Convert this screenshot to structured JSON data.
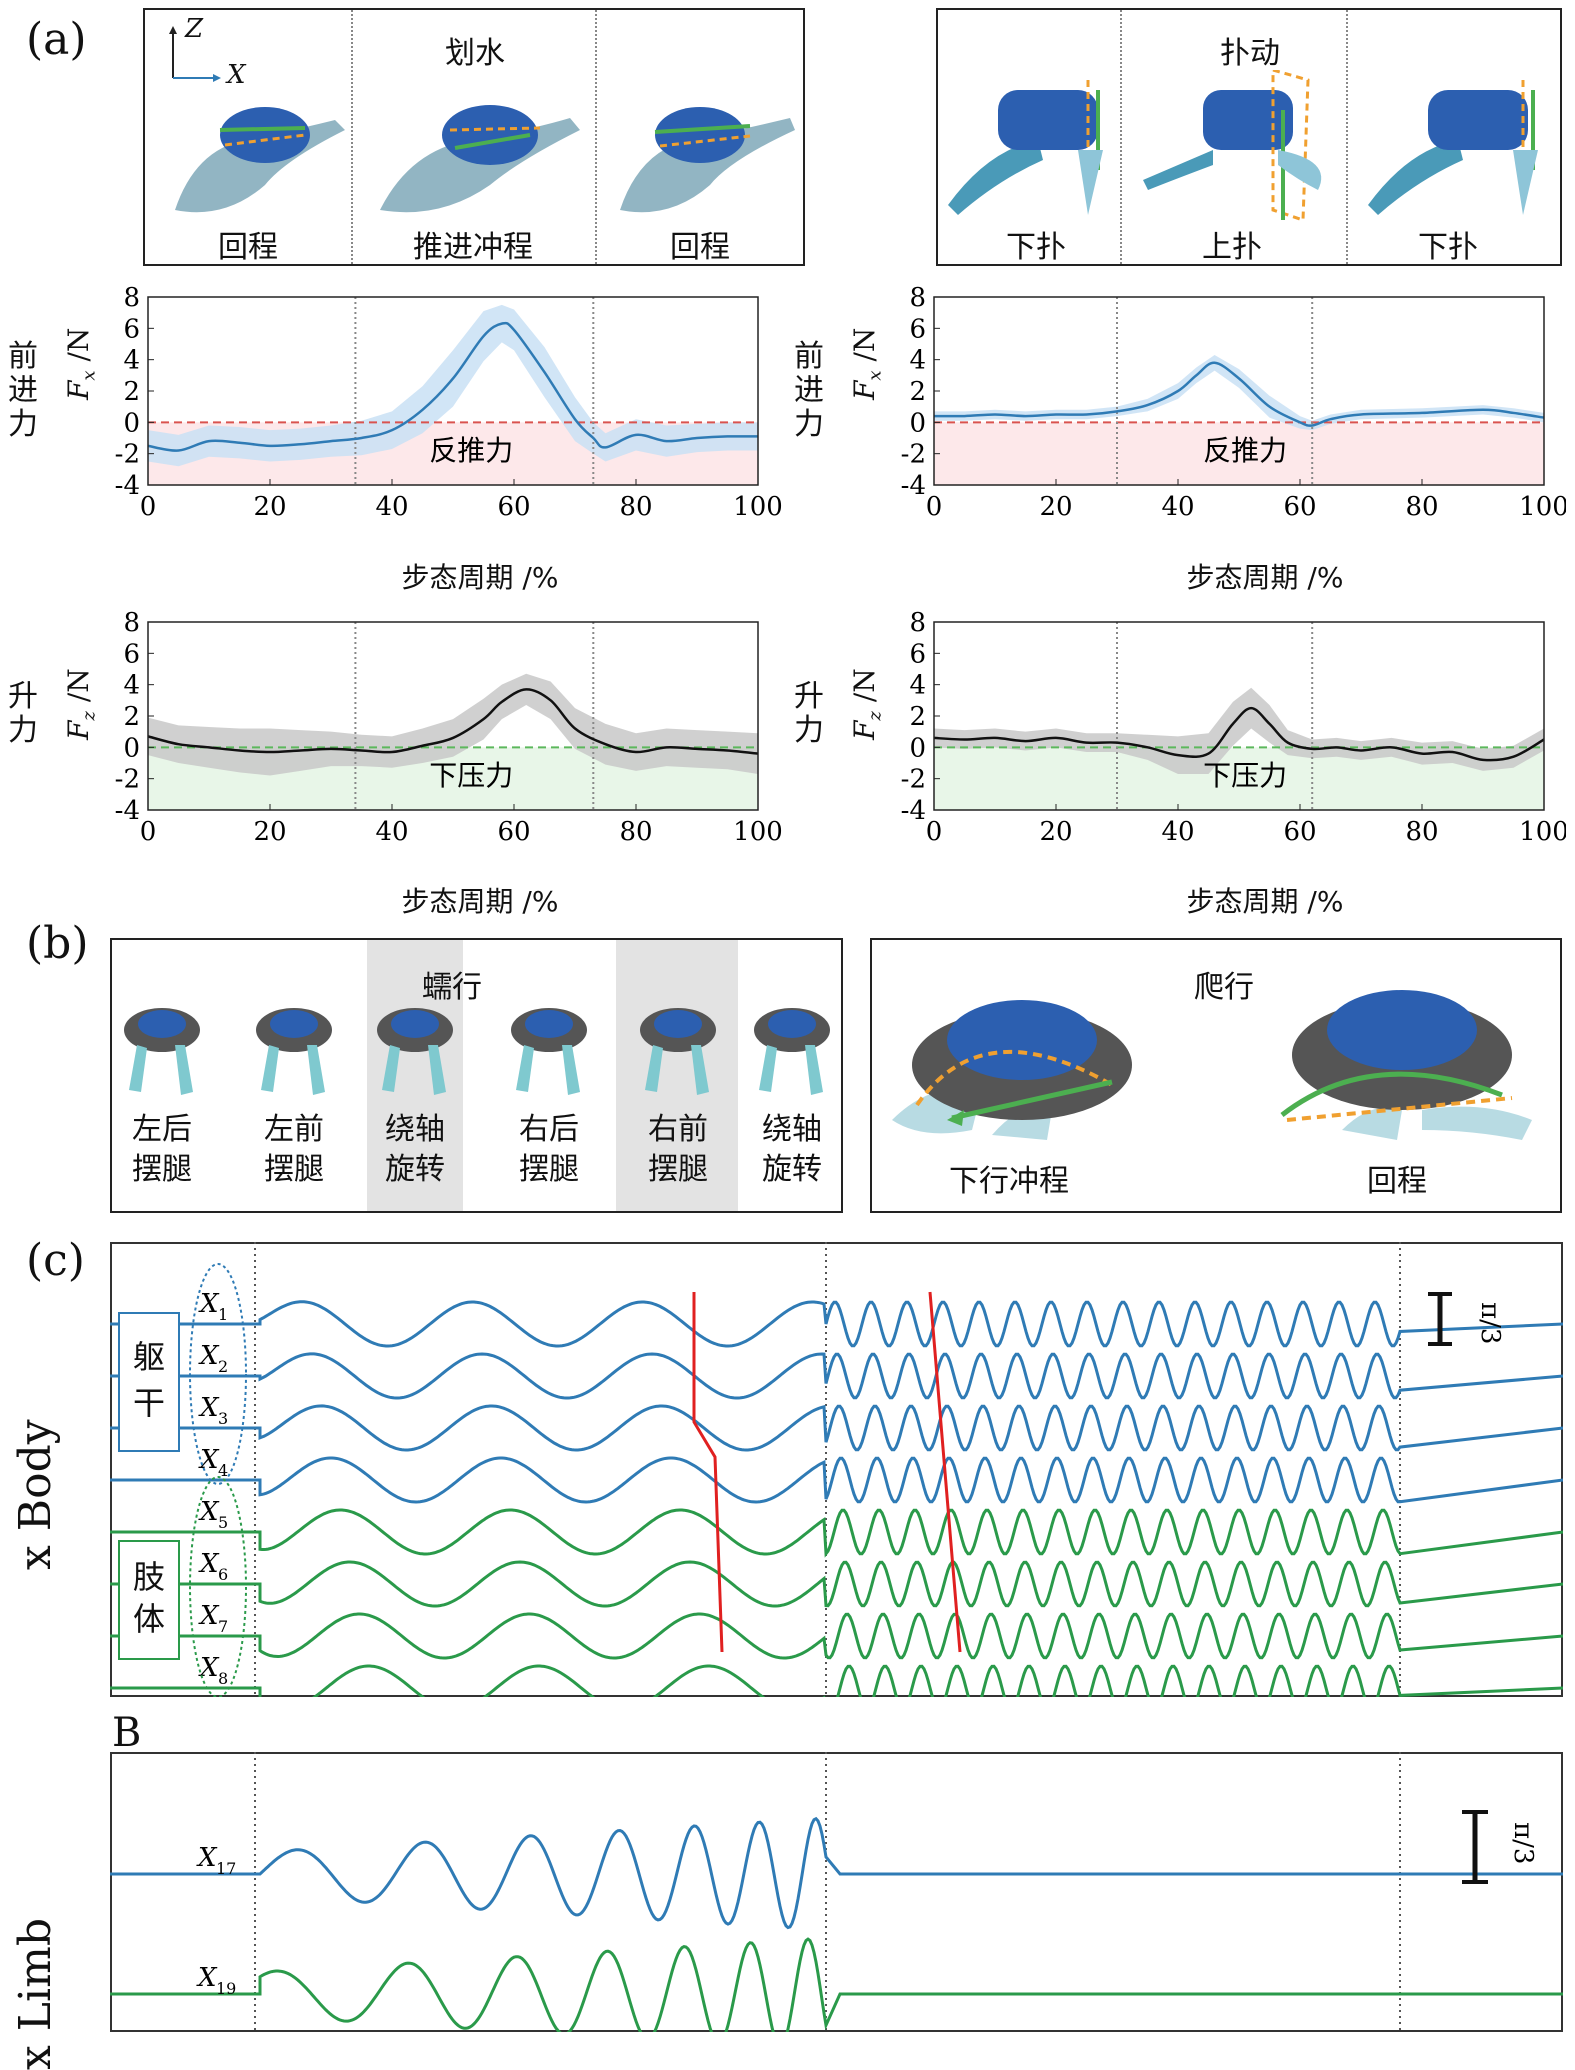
{
  "panels": {
    "a": "(a)",
    "b": "(b)",
    "c": "(c)"
  },
  "paddling": {
    "title": "划水",
    "axes_z": "Z",
    "axes_x": "X",
    "phases": [
      "回程",
      "推进冲程",
      "回程"
    ]
  },
  "flapping": {
    "title": "扑动",
    "phases": [
      "下扑",
      "上扑",
      "下扑"
    ]
  },
  "fx_label": {
    "cn": [
      "前",
      "进",
      "力"
    ],
    "var": "F",
    "sub": "x",
    "unit": " /N"
  },
  "fz_label": {
    "cn": [
      "升",
      "力"
    ],
    "var": "F",
    "sub": "z",
    "unit": " /N"
  },
  "xlabel": "步态周期 /%",
  "region_labels": {
    "reverse_thrust": "反推力",
    "downforce": "下压力"
  },
  "colors": {
    "series_blue": "#2f7bb5",
    "series_black": "#111111",
    "zero_red": "#d9534f",
    "zero_green": "#5cb85c",
    "band_blue": "#c9e0f4",
    "band_gray": "#c8c8c8",
    "fill_pink": "#fde8ea",
    "fill_green": "#e8f6e8"
  },
  "chart_data": [
    {
      "type": "line",
      "id": "paddle_fx",
      "ylim": [
        -4,
        8
      ],
      "xlim": [
        0,
        100
      ],
      "xticks": [
        0,
        20,
        40,
        60,
        80,
        100
      ],
      "yticks": [
        -4,
        -2,
        0,
        2,
        4,
        6,
        8
      ],
      "phase_lines": [
        34,
        73
      ],
      "x": [
        0,
        5,
        10,
        15,
        20,
        25,
        30,
        35,
        40,
        45,
        50,
        55,
        58,
        60,
        65,
        70,
        73,
        75,
        80,
        85,
        90,
        95,
        100
      ],
      "y": [
        -1.5,
        -1.8,
        -1.2,
        -1.3,
        -1.5,
        -1.4,
        -1.2,
        -1.0,
        -0.5,
        0.8,
        2.8,
        5.5,
        6.3,
        5.9,
        3.2,
        0.2,
        -1.0,
        -1.6,
        -0.8,
        -1.2,
        -1.0,
        -0.9,
        -0.9
      ],
      "band": [
        1.0,
        1.0,
        1.0,
        1.0,
        1.0,
        1.0,
        1.0,
        1.1,
        1.2,
        1.5,
        1.8,
        1.6,
        1.2,
        1.3,
        1.6,
        1.4,
        1.0,
        0.9,
        1.0,
        1.0,
        0.9,
        0.9,
        0.9
      ]
    },
    {
      "type": "line",
      "id": "flap_fx",
      "ylim": [
        -4,
        8
      ],
      "xlim": [
        0,
        100
      ],
      "xticks": [
        0,
        20,
        40,
        60,
        80,
        100
      ],
      "yticks": [
        -4,
        -2,
        0,
        2,
        4,
        6,
        8
      ],
      "phase_lines": [
        30,
        62
      ],
      "x": [
        0,
        5,
        10,
        15,
        20,
        25,
        30,
        35,
        40,
        43,
        46,
        50,
        55,
        60,
        62,
        65,
        70,
        80,
        90,
        95,
        100
      ],
      "y": [
        0.4,
        0.4,
        0.5,
        0.4,
        0.5,
        0.5,
        0.7,
        1.1,
        2.0,
        3.0,
        3.8,
        2.8,
        1.0,
        0.0,
        -0.2,
        0.2,
        0.5,
        0.6,
        0.8,
        0.6,
        0.3
      ],
      "band": [
        0.3,
        0.3,
        0.3,
        0.3,
        0.3,
        0.3,
        0.3,
        0.4,
        0.5,
        0.5,
        0.5,
        0.6,
        0.7,
        0.4,
        0.3,
        0.3,
        0.3,
        0.3,
        0.3,
        0.3,
        0.3
      ]
    },
    {
      "type": "line",
      "id": "paddle_fz",
      "ylim": [
        -4,
        8
      ],
      "xlim": [
        0,
        100
      ],
      "xticks": [
        0,
        20,
        40,
        60,
        80,
        100
      ],
      "yticks": [
        -4,
        -2,
        0,
        2,
        4,
        6,
        8
      ],
      "phase_lines": [
        34,
        73
      ],
      "x": [
        0,
        5,
        10,
        15,
        20,
        25,
        30,
        35,
        40,
        45,
        50,
        55,
        58,
        62,
        66,
        70,
        75,
        80,
        85,
        90,
        95,
        100
      ],
      "y": [
        0.7,
        0.2,
        0.0,
        -0.2,
        -0.3,
        -0.2,
        -0.1,
        -0.2,
        -0.3,
        0.1,
        0.6,
        1.8,
        2.9,
        3.7,
        3.0,
        1.2,
        0.2,
        -0.3,
        0.0,
        -0.1,
        -0.2,
        -0.4
      ],
      "band": [
        1.2,
        1.2,
        1.3,
        1.4,
        1.5,
        1.3,
        1.1,
        1.0,
        1.0,
        1.1,
        1.2,
        1.3,
        1.1,
        1.0,
        1.2,
        1.3,
        1.3,
        1.2,
        1.2,
        1.2,
        1.2,
        1.3
      ]
    },
    {
      "type": "line",
      "id": "flap_fz",
      "ylim": [
        -4,
        8
      ],
      "xlim": [
        0,
        100
      ],
      "xticks": [
        0,
        20,
        40,
        60,
        80,
        100
      ],
      "yticks": [
        -4,
        -2,
        0,
        2,
        4,
        6,
        8
      ],
      "phase_lines": [
        30,
        62
      ],
      "x": [
        0,
        5,
        10,
        15,
        20,
        25,
        30,
        35,
        40,
        45,
        49,
        52,
        55,
        58,
        62,
        66,
        70,
        75,
        80,
        85,
        90,
        95,
        100
      ],
      "y": [
        0.6,
        0.5,
        0.6,
        0.4,
        0.6,
        0.3,
        0.3,
        0.0,
        -0.5,
        -0.4,
        1.5,
        2.5,
        1.5,
        0.3,
        -0.1,
        0.0,
        -0.2,
        0.0,
        -0.4,
        -0.3,
        -0.8,
        -0.6,
        0.5
      ],
      "band": [
        0.6,
        0.6,
        0.6,
        0.6,
        0.6,
        0.6,
        0.6,
        0.8,
        1.2,
        1.3,
        1.4,
        1.3,
        1.2,
        0.8,
        0.6,
        0.6,
        0.6,
        0.6,
        0.7,
        0.7,
        0.7,
        0.7,
        0.7
      ]
    }
  ],
  "gait_b": {
    "inch_title": "蠕行",
    "inch_steps": [
      [
        "左后",
        "摆腿"
      ],
      [
        "左前",
        "摆腿"
      ],
      [
        "绕轴",
        "旋转"
      ],
      [
        "右后",
        "摆腿"
      ],
      [
        "右前",
        "摆腿"
      ],
      [
        "绕轴",
        "旋转"
      ]
    ],
    "crawl_title": "爬行",
    "crawl_steps": [
      "下行冲程",
      "回程"
    ]
  },
  "cpg": {
    "ylabel_body": "x Body",
    "ylabel_limb": "x Limb",
    "sub_b": "B",
    "group_trunk": [
      "躯",
      "干"
    ],
    "group_limb": [
      "肢",
      "体"
    ],
    "scale": "π/3",
    "body_channels": [
      {
        "name": "X",
        "sub": "1",
        "group": "trunk"
      },
      {
        "name": "X",
        "sub": "2",
        "group": "trunk"
      },
      {
        "name": "X",
        "sub": "3",
        "group": "trunk"
      },
      {
        "name": "X",
        "sub": "4",
        "group": "trunk"
      },
      {
        "name": "X",
        "sub": "5",
        "group": "limb"
      },
      {
        "name": "X",
        "sub": "6",
        "group": "limb"
      },
      {
        "name": "X",
        "sub": "7",
        "group": "limb"
      },
      {
        "name": "X",
        "sub": "8",
        "group": "limb"
      }
    ],
    "limb_channels": [
      {
        "name": "X",
        "sub": "17"
      },
      {
        "name": "X",
        "sub": "19"
      }
    ]
  }
}
